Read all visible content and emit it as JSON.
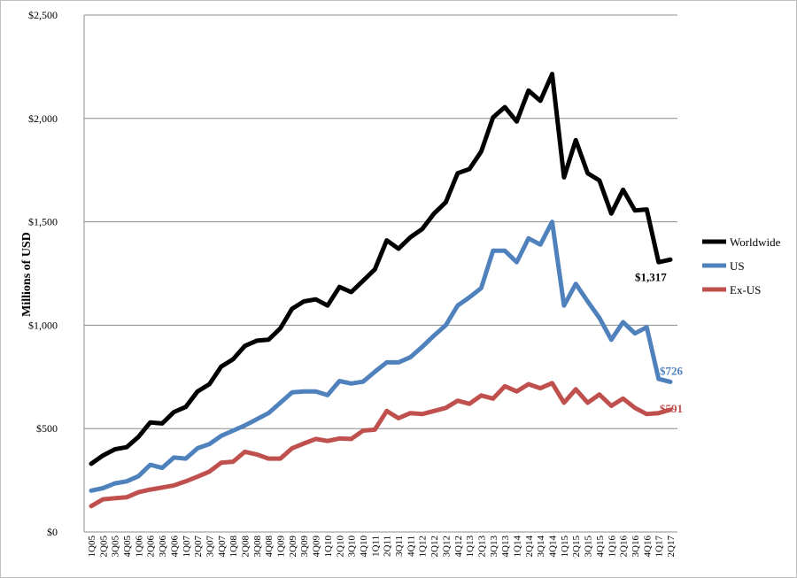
{
  "chart_data": {
    "type": "line",
    "ylabel": "Millions of USD",
    "ylim": [
      0,
      2500
    ],
    "yticks": [
      0,
      500,
      1000,
      1500,
      2000,
      2500
    ],
    "ytick_labels": [
      "$0",
      "$500",
      "$1,000",
      "$1,500",
      "$2,000",
      "$2,500"
    ],
    "grid": true,
    "legend_position": "right",
    "x": [
      "1Q05",
      "2Q05",
      "3Q05",
      "4Q05",
      "1Q06",
      "2Q06",
      "3Q06",
      "4Q06",
      "1Q07",
      "2Q07",
      "3Q07",
      "4Q07",
      "1Q08",
      "2Q08",
      "3Q08",
      "4Q08",
      "1Q09",
      "2Q09",
      "3Q09",
      "4Q09",
      "1Q10",
      "2Q10",
      "3Q10",
      "4Q10",
      "1Q11",
      "2Q11",
      "3Q11",
      "4Q11",
      "1Q12",
      "2Q12",
      "3Q12",
      "4Q12",
      "1Q13",
      "2Q13",
      "3Q13",
      "4Q13",
      "1Q14",
      "2Q14",
      "3Q14",
      "4Q14",
      "1Q15",
      "2Q15",
      "3Q15",
      "4Q15",
      "1Q16",
      "2Q16",
      "3Q16",
      "4Q16",
      "1Q17",
      "2Q17"
    ],
    "series": [
      {
        "name": "Worldwide",
        "color": "#000000",
        "end_label": "$1,317",
        "values": [
          330,
          370,
          400,
          410,
          460,
          530,
          525,
          580,
          605,
          680,
          715,
          800,
          835,
          900,
          925,
          930,
          985,
          1080,
          1115,
          1125,
          1095,
          1185,
          1160,
          1215,
          1270,
          1410,
          1370,
          1425,
          1465,
          1540,
          1595,
          1735,
          1755,
          1840,
          2005,
          2055,
          1985,
          2135,
          2085,
          2215,
          1715,
          1895,
          1735,
          1700,
          1540,
          1655,
          1555,
          1560,
          1305,
          1317
        ]
      },
      {
        "name": "US",
        "color": "#4f81bd",
        "end_label": "$726",
        "values": [
          200,
          212,
          235,
          245,
          270,
          325,
          310,
          360,
          355,
          405,
          425,
          465,
          490,
          515,
          545,
          575,
          625,
          675,
          680,
          680,
          662,
          730,
          718,
          727,
          775,
          820,
          820,
          845,
          895,
          950,
          1000,
          1095,
          1135,
          1180,
          1360,
          1360,
          1305,
          1420,
          1390,
          1500,
          1095,
          1200,
          1115,
          1035,
          930,
          1015,
          960,
          990,
          740,
          726
        ]
      },
      {
        "name": "Ex-US",
        "color": "#c0504d",
        "end_label": "$591",
        "values": [
          125,
          158,
          163,
          168,
          192,
          205,
          215,
          225,
          245,
          268,
          292,
          335,
          340,
          388,
          375,
          355,
          355,
          405,
          428,
          450,
          440,
          452,
          450,
          490,
          495,
          585,
          550,
          575,
          570,
          585,
          600,
          635,
          620,
          660,
          645,
          705,
          680,
          715,
          695,
          720,
          625,
          690,
          625,
          665,
          610,
          645,
          600,
          570,
          575,
          591
        ]
      }
    ]
  }
}
